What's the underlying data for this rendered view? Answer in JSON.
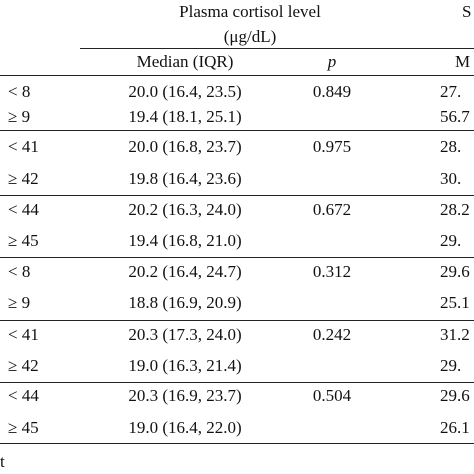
{
  "header": {
    "group_title": "Plasma cortisol level",
    "group_unit": "(μg/dL)",
    "right_title": "S",
    "columns": [
      "Median (IQR)",
      "p",
      "M"
    ]
  },
  "table": {
    "rows": [
      [
        "< 8",
        "20.0 (16.4, 23.5)",
        "0.849",
        "27."
      ],
      [
        "≥ 9",
        "19.4 (18.1, 25.1)",
        "",
        "56.7"
      ],
      [
        "< 41",
        "20.0 (16.8, 23.7)",
        "0.975",
        "28."
      ],
      [
        "≥ 42",
        "19.8 (16.4, 23.6)",
        "",
        "30."
      ],
      [
        "< 44",
        "20.2 (16.3, 24.0)",
        "0.672",
        "28.2"
      ],
      [
        "≥ 45",
        "19.4 (16.8, 21.0)",
        "",
        "29."
      ],
      [
        "< 8",
        "20.2 (16.4, 24.7)",
        "0.312",
        "29.6"
      ],
      [
        "≥ 9",
        "18.8 (16.9, 20.9)",
        "",
        "25.1"
      ],
      [
        "< 41",
        "20.3 (17.3, 24.0)",
        "0.242",
        "31.2"
      ],
      [
        "≥ 42",
        "19.0 (16.3, 21.4)",
        "",
        "29."
      ],
      [
        "< 44",
        "20.3 (16.9, 23.7)",
        "0.504",
        "29.6"
      ],
      [
        "≥ 45",
        "19.0 (16.4, 22.0)",
        "",
        "26.1"
      ]
    ]
  },
  "footnote": "t"
}
